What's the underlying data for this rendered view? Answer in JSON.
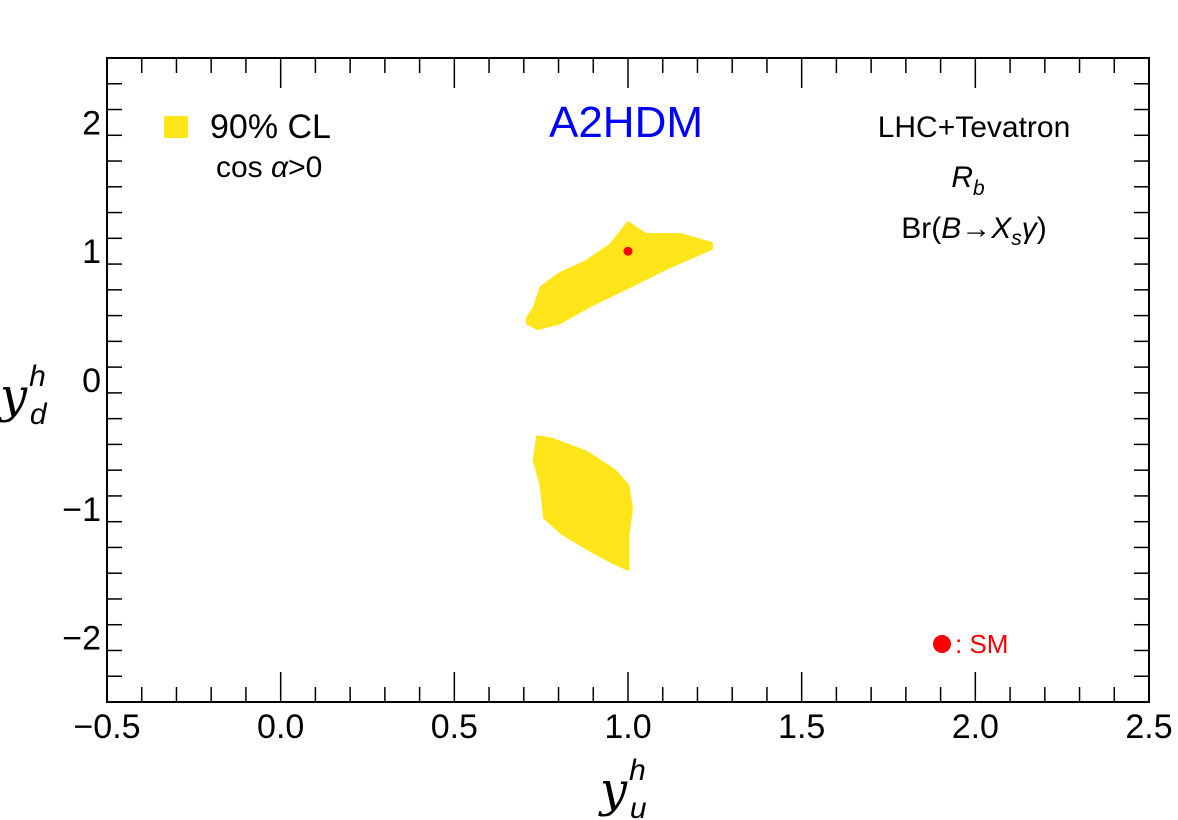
{
  "chart_data": {
    "type": "scatter",
    "title": "A2HDM",
    "xlabel": {
      "base": "y",
      "sup": "h",
      "sub": "u"
    },
    "ylabel": {
      "base": "y",
      "sup": "h",
      "sub": "d"
    },
    "xlim": [
      -0.5,
      2.5
    ],
    "ylim": [
      -2.5,
      2.5
    ],
    "x_ticks": [
      -0.5,
      0.0,
      0.5,
      1.0,
      1.5,
      2.0,
      2.5
    ],
    "x_tick_labels": [
      "−0.5",
      "0.0",
      "0.5",
      "1.0",
      "1.5",
      "2.0",
      "2.5"
    ],
    "y_ticks": [
      -2,
      -1,
      0,
      1,
      2
    ],
    "y_tick_labels": [
      "−2",
      "−1",
      "0",
      "1",
      "2"
    ],
    "grid": false,
    "legend": {
      "label": "90% CL",
      "sublabel_pre": "cos ",
      "sublabel_var": "α",
      "sublabel_post": ">0",
      "color": "#ffe51a",
      "position": "top-left"
    },
    "constraints": {
      "line1": "LHC+Tevatron",
      "line2_base": "R",
      "line2_sub": "b",
      "line3_pre": "Br(",
      "line3_b": "B",
      "line3_arrow": "→",
      "line3_x": "X",
      "line3_sub": "s",
      "line3_gamma": "γ",
      "line3_post": ")"
    },
    "sm_label": ": SM",
    "colors": {
      "region": "#ffe51a",
      "sm": "#ff0000",
      "title": "#0000ff",
      "axis": "#000000"
    },
    "regions": [
      {
        "name": "upper-region",
        "polygon": [
          [
            0.71,
            0.48
          ],
          [
            0.73,
            0.56
          ],
          [
            0.75,
            0.72
          ],
          [
            0.8,
            0.82
          ],
          [
            0.88,
            0.92
          ],
          [
            0.95,
            1.05
          ],
          [
            1.0,
            1.22
          ],
          [
            1.05,
            1.13
          ],
          [
            1.15,
            1.13
          ],
          [
            1.24,
            1.06
          ],
          [
            1.24,
            1.02
          ],
          [
            1.12,
            0.88
          ],
          [
            1.0,
            0.72
          ],
          [
            0.9,
            0.59
          ],
          [
            0.8,
            0.44
          ],
          [
            0.74,
            0.4
          ],
          [
            0.71,
            0.44
          ]
        ]
      },
      {
        "name": "lower-region",
        "polygon": [
          [
            0.74,
            -0.44
          ],
          [
            0.78,
            -0.46
          ],
          [
            0.88,
            -0.56
          ],
          [
            0.96,
            -0.7
          ],
          [
            1.0,
            -0.82
          ],
          [
            1.01,
            -1.0
          ],
          [
            1.0,
            -1.2
          ],
          [
            1.0,
            -1.47
          ],
          [
            0.96,
            -1.42
          ],
          [
            0.89,
            -1.32
          ],
          [
            0.81,
            -1.19
          ],
          [
            0.76,
            -1.07
          ],
          [
            0.75,
            -0.82
          ],
          [
            0.73,
            -0.62
          ]
        ]
      }
    ],
    "sm_point": {
      "x": 1.0,
      "y": 1.0
    }
  }
}
